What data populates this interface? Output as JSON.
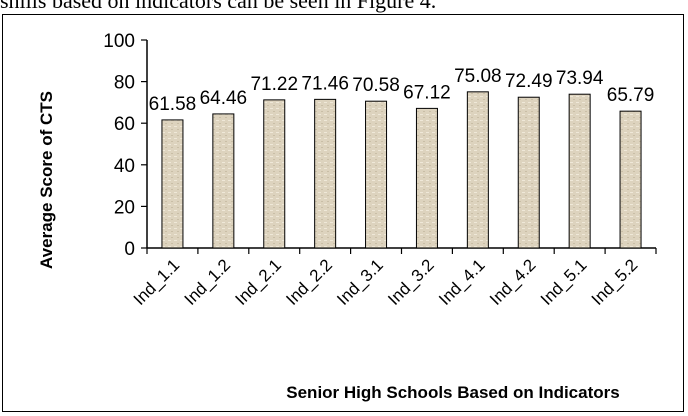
{
  "caption_fragment": "shills based on indicators can be seen in Figure 4.",
  "chart_data": {
    "type": "bar",
    "categories": [
      "Ind_1.1",
      "Ind_1.2",
      "Ind_2.1",
      "Ind_2.2",
      "Ind_3.1",
      "Ind_3.2",
      "Ind_4.1",
      "Ind_4.2",
      "Ind_5.1",
      "Ind_5.2"
    ],
    "values": [
      61.58,
      64.46,
      71.22,
      71.46,
      70.58,
      67.12,
      75.08,
      72.49,
      73.94,
      65.79
    ],
    "data_labels": [
      "61.58",
      "64.46",
      "71.22",
      "71.46",
      "70.58",
      "67.12",
      "75.08",
      "72.49",
      "73.94",
      "65.79"
    ],
    "title": "",
    "xlabel": "Senior High Schools Based on Indicators",
    "ylabel": "Average Score of CTS",
    "ylim": [
      0,
      100
    ],
    "yticks": [
      0,
      20,
      40,
      60,
      80,
      100
    ],
    "grid": false,
    "legend": "none",
    "bar_color": "#ddd3be",
    "bar_stroke": "#000000"
  }
}
